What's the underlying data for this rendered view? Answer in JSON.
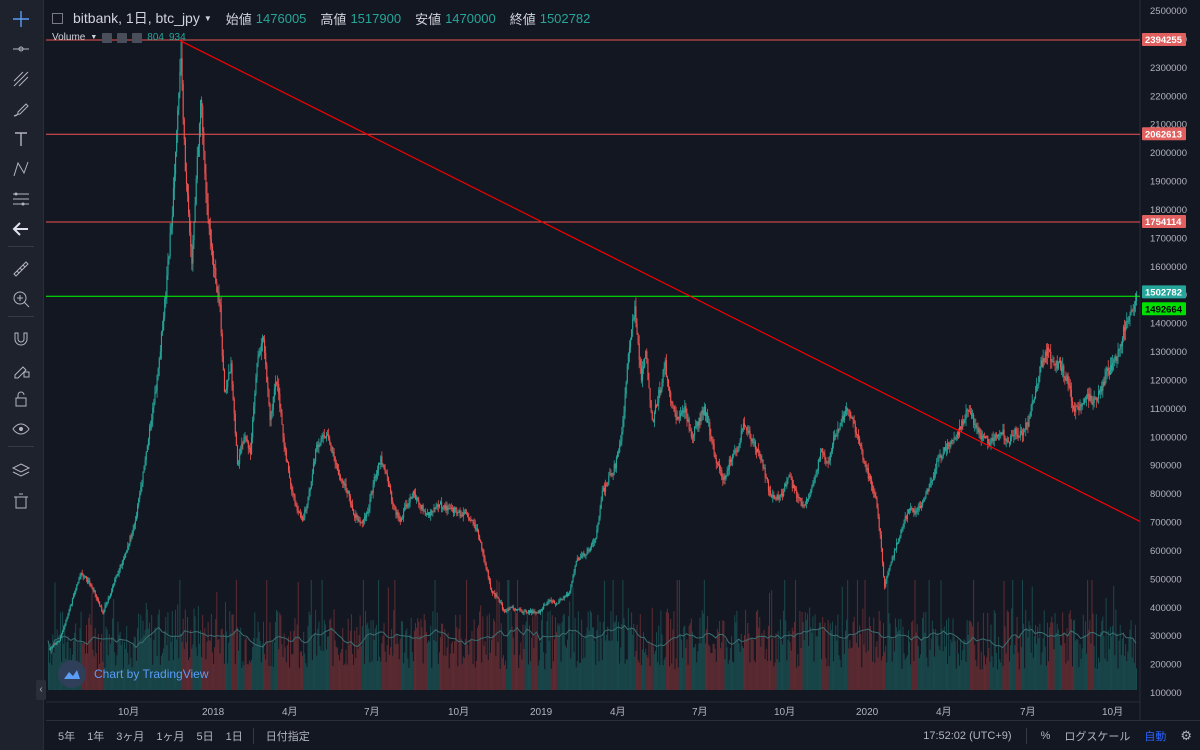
{
  "legend": {
    "symbol": "bitbank, 1日, btc_jpy",
    "open_label": "始値",
    "open_value": "1476005",
    "high_label": "高値",
    "high_value": "1517900",
    "low_label": "安値",
    "low_value": "1470000",
    "close_label": "終値",
    "close_value": "1502782"
  },
  "volume_legend": {
    "name": "Volume",
    "value1": "804",
    "value2": "934"
  },
  "watermark": {
    "text": "Chart by TradingView"
  },
  "price_axis": {
    "min": 100000,
    "max": 2500000,
    "step": 100000,
    "labels": [
      "2500000",
      "2400000",
      "2300000",
      "2200000",
      "2100000",
      "2000000",
      "1900000",
      "1800000",
      "1700000",
      "1600000",
      "1500000",
      "1400000",
      "1300000",
      "1200000",
      "1100000",
      "1000000",
      "900000",
      "800000",
      "700000",
      "600000",
      "500000",
      "400000",
      "300000",
      "200000",
      "100000"
    ]
  },
  "time_axis": [
    "10月",
    "2018",
    "4月",
    "7月",
    "10月",
    "2019",
    "4月",
    "7月",
    "10月",
    "2020",
    "4月",
    "7月",
    "10月"
  ],
  "horizontal_lines": [
    {
      "price": 2394255,
      "label": "2394255",
      "color": "#ef5350"
    },
    {
      "price": 2062613,
      "label": "2062613",
      "color": "#ef5350"
    },
    {
      "price": 1754114,
      "label": "1754114",
      "color": "#ef5350"
    },
    {
      "price": 1492664,
      "label": "1492664",
      "color": "#00ff00"
    }
  ],
  "last_price": {
    "price": 1502782,
    "label": "1502782",
    "color": "#26a69a"
  },
  "trend_line": {
    "from_date": "2017-12-17",
    "from_price": 2394255,
    "to_date": "2020-11-17",
    "to_price": 700000,
    "color": "#ff0000"
  },
  "colors": {
    "up": "#26a69a",
    "down": "#ef5350",
    "volume_ma": "#3b6e70"
  },
  "price_path": [
    [
      0,
      250000
    ],
    [
      10,
      280000
    ],
    [
      20,
      400000
    ],
    [
      30,
      520000
    ],
    [
      40,
      470000
    ],
    [
      50,
      380000
    ],
    [
      60,
      480000
    ],
    [
      70,
      580000
    ],
    [
      80,
      700000
    ],
    [
      90,
      940000
    ],
    [
      100,
      1200000
    ],
    [
      108,
      1500000
    ],
    [
      114,
      1800000
    ],
    [
      118,
      2100000
    ],
    [
      122,
      2300000
    ],
    [
      126,
      1950000
    ],
    [
      132,
      1600000
    ],
    [
      136,
      1900000
    ],
    [
      140,
      2200000
    ],
    [
      146,
      1800000
    ],
    [
      152,
      1600000
    ],
    [
      158,
      1450000
    ],
    [
      162,
      1150000
    ],
    [
      168,
      1250000
    ],
    [
      174,
      900000
    ],
    [
      180,
      1000000
    ],
    [
      186,
      950000
    ],
    [
      192,
      1250000
    ],
    [
      198,
      1350000
    ],
    [
      204,
      1050000
    ],
    [
      210,
      1200000
    ],
    [
      216,
      1000000
    ],
    [
      222,
      850000
    ],
    [
      228,
      750000
    ],
    [
      234,
      700000
    ],
    [
      240,
      800000
    ],
    [
      246,
      950000
    ],
    [
      252,
      1000000
    ],
    [
      258,
      1000000
    ],
    [
      264,
      900000
    ],
    [
      270,
      850000
    ],
    [
      276,
      800000
    ],
    [
      282,
      720000
    ],
    [
      288,
      700000
    ],
    [
      294,
      730000
    ],
    [
      300,
      850000
    ],
    [
      306,
      920000
    ],
    [
      312,
      850000
    ],
    [
      318,
      750000
    ],
    [
      324,
      700000
    ],
    [
      330,
      760000
    ],
    [
      336,
      800000
    ],
    [
      342,
      760000
    ],
    [
      348,
      720000
    ],
    [
      354,
      740000
    ],
    [
      360,
      760000
    ],
    [
      366,
      750000
    ],
    [
      372,
      740000
    ],
    [
      378,
      730000
    ],
    [
      384,
      720000
    ],
    [
      390,
      700000
    ],
    [
      396,
      650000
    ],
    [
      402,
      560000
    ],
    [
      408,
      450000
    ],
    [
      414,
      430000
    ],
    [
      420,
      380000
    ],
    [
      426,
      400000
    ],
    [
      432,
      390000
    ],
    [
      438,
      380000
    ],
    [
      444,
      385000
    ],
    [
      450,
      375000
    ],
    [
      456,
      400000
    ],
    [
      462,
      420000
    ],
    [
      468,
      410000
    ],
    [
      474,
      430000
    ],
    [
      480,
      450000
    ],
    [
      486,
      560000
    ],
    [
      492,
      580000
    ],
    [
      498,
      600000
    ],
    [
      504,
      640000
    ],
    [
      510,
      800000
    ],
    [
      516,
      850000
    ],
    [
      522,
      900000
    ],
    [
      528,
      1000000
    ],
    [
      532,
      1200000
    ],
    [
      536,
      1350000
    ],
    [
      540,
      1450000
    ],
    [
      546,
      1200000
    ],
    [
      550,
      1300000
    ],
    [
      556,
      1050000
    ],
    [
      562,
      1150000
    ],
    [
      568,
      1250000
    ],
    [
      574,
      1100000
    ],
    [
      580,
      1050000
    ],
    [
      586,
      1100000
    ],
    [
      592,
      1000000
    ],
    [
      598,
      1050000
    ],
    [
      604,
      1100000
    ],
    [
      610,
      1000000
    ],
    [
      616,
      900000
    ],
    [
      622,
      850000
    ],
    [
      628,
      920000
    ],
    [
      634,
      950000
    ],
    [
      640,
      1050000
    ],
    [
      646,
      1000000
    ],
    [
      652,
      950000
    ],
    [
      658,
      900000
    ],
    [
      664,
      800000
    ],
    [
      670,
      780000
    ],
    [
      676,
      800000
    ],
    [
      682,
      860000
    ],
    [
      688,
      800000
    ],
    [
      694,
      760000
    ],
    [
      700,
      780000
    ],
    [
      706,
      860000
    ],
    [
      712,
      950000
    ],
    [
      718,
      900000
    ],
    [
      724,
      1000000
    ],
    [
      730,
      1050000
    ],
    [
      736,
      1100000
    ],
    [
      740,
      1050000
    ],
    [
      746,
      1000000
    ],
    [
      750,
      930000
    ],
    [
      756,
      850000
    ],
    [
      762,
      780000
    ],
    [
      766,
      650000
    ],
    [
      770,
      470000
    ],
    [
      776,
      560000
    ],
    [
      782,
      630000
    ],
    [
      788,
      700000
    ],
    [
      794,
      750000
    ],
    [
      800,
      730000
    ],
    [
      806,
      780000
    ],
    [
      812,
      830000
    ],
    [
      818,
      900000
    ],
    [
      824,
      950000
    ],
    [
      830,
      970000
    ],
    [
      836,
      1000000
    ],
    [
      842,
      1050000
    ],
    [
      848,
      1100000
    ],
    [
      854,
      1020000
    ],
    [
      860,
      1000000
    ],
    [
      866,
      980000
    ],
    [
      872,
      1000000
    ],
    [
      878,
      1020000
    ],
    [
      884,
      980000
    ],
    [
      890,
      1020000
    ],
    [
      896,
      1000000
    ],
    [
      902,
      1050000
    ],
    [
      908,
      1150000
    ],
    [
      914,
      1250000
    ],
    [
      920,
      1300000
    ],
    [
      926,
      1250000
    ],
    [
      932,
      1250000
    ],
    [
      938,
      1200000
    ],
    [
      944,
      1100000
    ],
    [
      950,
      1100000
    ],
    [
      956,
      1150000
    ],
    [
      962,
      1120000
    ],
    [
      968,
      1150000
    ],
    [
      974,
      1220000
    ],
    [
      980,
      1250000
    ],
    [
      986,
      1300000
    ],
    [
      992,
      1400000
    ],
    [
      998,
      1450000
    ],
    [
      1002,
      1490000
    ]
  ]
}
